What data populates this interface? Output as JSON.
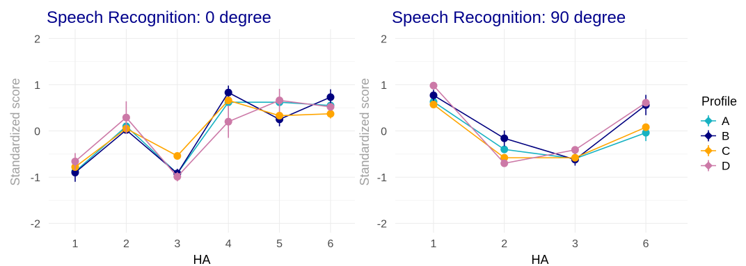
{
  "chart_data": [
    {
      "type": "line",
      "title": "Speech Recognition: 0 degree",
      "xlabel": "HA",
      "ylabel": "Standardized score",
      "x": [
        "1",
        "2",
        "3",
        "4",
        "5",
        "6"
      ],
      "ylim": [
        -2.2,
        2.2
      ],
      "yticks": [
        -2,
        -1,
        0,
        1,
        2
      ],
      "grid": true,
      "series": [
        {
          "name": "A",
          "color": "#17b2c2",
          "marker": "diamond",
          "values": [
            -0.88,
            0.1,
            -0.92,
            0.62,
            0.62,
            0.55
          ],
          "err": [
            0.05,
            0.06,
            0.06,
            0.06,
            0.06,
            0.06
          ]
        },
        {
          "name": "B",
          "color": "#00007f",
          "marker": "diamond",
          "values": [
            -0.9,
            0.02,
            -0.92,
            0.83,
            0.25,
            0.73
          ],
          "err": [
            0.2,
            0.07,
            0.1,
            0.15,
            0.15,
            0.17
          ]
        },
        {
          "name": "C",
          "color": "#ffa500",
          "marker": "diamond",
          "values": [
            -0.78,
            0.05,
            -0.54,
            0.66,
            0.33,
            0.37
          ],
          "err": [
            0.05,
            0.05,
            0.05,
            0.05,
            0.05,
            0.1
          ]
        },
        {
          "name": "D",
          "color": "#cc79a7",
          "marker": "diamond",
          "values": [
            -0.66,
            0.29,
            -0.99,
            0.2,
            0.66,
            0.52
          ],
          "err": [
            0.18,
            0.35,
            0.1,
            0.35,
            0.25,
            0.06
          ]
        }
      ]
    },
    {
      "type": "line",
      "title": "Speech Recognition: 90 degree",
      "xlabel": "HA",
      "ylabel": "Standardized score",
      "x": [
        "1",
        "2",
        "3",
        "6"
      ],
      "ylim": [
        -2.2,
        2.2
      ],
      "yticks": [
        -2,
        -1,
        0,
        1,
        2
      ],
      "grid": true,
      "series": [
        {
          "name": "A",
          "color": "#17b2c2",
          "marker": "diamond",
          "values": [
            0.63,
            -0.4,
            -0.6,
            -0.04
          ],
          "err": [
            0.05,
            0.07,
            0.05,
            0.18
          ]
        },
        {
          "name": "B",
          "color": "#00007f",
          "marker": "diamond",
          "values": [
            0.77,
            -0.16,
            -0.62,
            0.56
          ],
          "err": [
            0.12,
            0.17,
            0.13,
            0.22
          ]
        },
        {
          "name": "C",
          "color": "#ffa500",
          "marker": "diamond",
          "values": [
            0.57,
            -0.58,
            -0.58,
            0.08
          ],
          "err": [
            0.06,
            0.06,
            0.06,
            0.06
          ]
        },
        {
          "name": "D",
          "color": "#cc79a7",
          "marker": "diamond",
          "values": [
            0.98,
            -0.7,
            -0.41,
            0.61
          ],
          "err": [
            0.05,
            0.08,
            0.05,
            0.06
          ]
        }
      ]
    }
  ],
  "legend": {
    "title": "Profile",
    "placement": "right",
    "items": [
      {
        "label": "A",
        "color": "#17b2c2"
      },
      {
        "label": "B",
        "color": "#00007f"
      },
      {
        "label": "C",
        "color": "#ffa500"
      },
      {
        "label": "D",
        "color": "#cc79a7"
      }
    ]
  }
}
